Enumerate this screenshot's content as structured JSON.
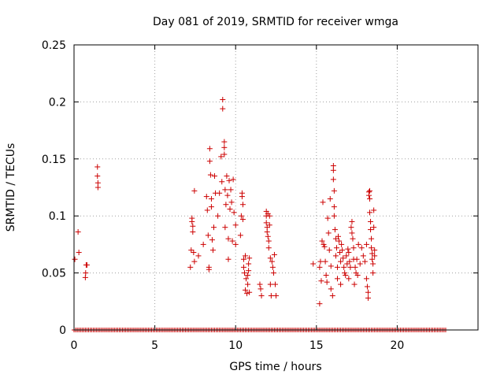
{
  "chart_data": {
    "type": "scatter",
    "title": "Day 081 of 2019, SRMTID for receiver wmga",
    "xlabel": "GPS time / hours",
    "ylabel": "SRMTID / TECUs",
    "xlim": [
      0,
      25
    ],
    "ylim": [
      0,
      0.25
    ],
    "xticks": [
      0,
      5,
      10,
      15,
      20
    ],
    "xtick_labels": [
      "0",
      "5",
      "10",
      "15",
      "20"
    ],
    "yticks": [
      0,
      0.05,
      0.1,
      0.15,
      0.2,
      0.25
    ],
    "ytick_labels": [
      "0",
      "0.05",
      "0.1",
      "0.15",
      "0.2",
      "0.25"
    ],
    "grid": true,
    "marker": "+",
    "series": [
      {
        "name": "SRMTID",
        "color": "#cc0000",
        "baseline_zero_range": [
          0,
          23.0
        ],
        "points": [
          [
            0.05,
            0.062
          ],
          [
            0.25,
            0.086
          ],
          [
            0.3,
            0.068
          ],
          [
            0.7,
            0.046
          ],
          [
            0.72,
            0.05
          ],
          [
            0.75,
            0.057
          ],
          [
            0.8,
            0.057
          ],
          [
            1.45,
            0.143
          ],
          [
            1.45,
            0.135
          ],
          [
            1.48,
            0.129
          ],
          [
            1.48,
            0.125
          ],
          [
            7.2,
            0.055
          ],
          [
            7.25,
            0.07
          ],
          [
            7.3,
            0.098
          ],
          [
            7.3,
            0.095
          ],
          [
            7.35,
            0.091
          ],
          [
            7.35,
            0.086
          ],
          [
            7.4,
            0.068
          ],
          [
            7.45,
            0.06
          ],
          [
            7.45,
            0.122
          ],
          [
            7.7,
            0.065
          ],
          [
            8.0,
            0.075
          ],
          [
            8.2,
            0.117
          ],
          [
            8.25,
            0.105
          ],
          [
            8.3,
            0.083
          ],
          [
            8.35,
            0.055
          ],
          [
            8.35,
            0.053
          ],
          [
            8.4,
            0.159
          ],
          [
            8.4,
            0.148
          ],
          [
            8.45,
            0.136
          ],
          [
            8.5,
            0.115
          ],
          [
            8.5,
            0.108
          ],
          [
            8.55,
            0.079
          ],
          [
            8.6,
            0.07
          ],
          [
            8.65,
            0.09
          ],
          [
            8.7,
            0.135
          ],
          [
            8.75,
            0.12
          ],
          [
            8.9,
            0.1
          ],
          [
            9.0,
            0.12
          ],
          [
            9.1,
            0.152
          ],
          [
            9.15,
            0.13
          ],
          [
            9.2,
            0.202
          ],
          [
            9.2,
            0.194
          ],
          [
            9.3,
            0.165
          ],
          [
            9.3,
            0.16
          ],
          [
            9.3,
            0.154
          ],
          [
            9.35,
            0.123
          ],
          [
            9.35,
            0.09
          ],
          [
            9.4,
            0.11
          ],
          [
            9.45,
            0.135
          ],
          [
            9.5,
            0.118
          ],
          [
            9.55,
            0.08
          ],
          [
            9.55,
            0.062
          ],
          [
            9.6,
            0.131
          ],
          [
            9.65,
            0.106
          ],
          [
            9.7,
            0.123
          ],
          [
            9.75,
            0.112
          ],
          [
            9.8,
            0.078
          ],
          [
            9.85,
            0.132
          ],
          [
            9.9,
            0.103
          ],
          [
            10.0,
            0.092
          ],
          [
            10.0,
            0.075
          ],
          [
            10.3,
            0.083
          ],
          [
            10.35,
            0.1
          ],
          [
            10.4,
            0.12
          ],
          [
            10.4,
            0.117
          ],
          [
            10.45,
            0.11
          ],
          [
            10.45,
            0.097
          ],
          [
            10.5,
            0.062
          ],
          [
            10.5,
            0.055
          ],
          [
            10.55,
            0.05
          ],
          [
            10.6,
            0.065
          ],
          [
            10.6,
            0.035
          ],
          [
            10.65,
            0.045
          ],
          [
            10.7,
            0.032
          ],
          [
            10.75,
            0.048
          ],
          [
            10.75,
            0.04
          ],
          [
            10.8,
            0.058
          ],
          [
            10.8,
            0.052
          ],
          [
            10.85,
            0.063
          ],
          [
            10.85,
            0.033
          ],
          [
            11.5,
            0.04
          ],
          [
            11.55,
            0.036
          ],
          [
            11.6,
            0.03
          ],
          [
            11.9,
            0.104
          ],
          [
            11.9,
            0.1
          ],
          [
            11.9,
            0.094
          ],
          [
            11.95,
            0.09
          ],
          [
            11.95,
            0.086
          ],
          [
            12.0,
            0.102
          ],
          [
            12.0,
            0.082
          ],
          [
            12.05,
            0.078
          ],
          [
            12.05,
            0.072
          ],
          [
            12.1,
            0.1
          ],
          [
            12.1,
            0.092
          ],
          [
            12.15,
            0.063
          ],
          [
            12.15,
            0.04
          ],
          [
            12.2,
            0.03
          ],
          [
            12.25,
            0.06
          ],
          [
            12.3,
            0.055
          ],
          [
            12.35,
            0.05
          ],
          [
            12.4,
            0.066
          ],
          [
            12.45,
            0.04
          ],
          [
            12.5,
            0.03
          ],
          [
            14.8,
            0.058
          ],
          [
            15.2,
            0.055
          ],
          [
            15.2,
            0.023
          ],
          [
            15.25,
            0.06
          ],
          [
            15.3,
            0.043
          ],
          [
            15.35,
            0.078
          ],
          [
            15.4,
            0.112
          ],
          [
            15.45,
            0.075
          ],
          [
            15.5,
            0.073
          ],
          [
            15.55,
            0.06
          ],
          [
            15.6,
            0.048
          ],
          [
            15.65,
            0.042
          ],
          [
            15.7,
            0.098
          ],
          [
            15.75,
            0.085
          ],
          [
            15.8,
            0.07
          ],
          [
            15.85,
            0.115
          ],
          [
            15.9,
            0.056
          ],
          [
            15.9,
            0.036
          ],
          [
            16.0,
            0.03
          ],
          [
            16.05,
            0.144
          ],
          [
            16.05,
            0.14
          ],
          [
            16.05,
            0.132
          ],
          [
            16.1,
            0.122
          ],
          [
            16.1,
            0.108
          ],
          [
            16.1,
            0.1
          ],
          [
            16.15,
            0.088
          ],
          [
            16.2,
            0.08
          ],
          [
            16.2,
            0.065
          ],
          [
            16.25,
            0.072
          ],
          [
            16.3,
            0.055
          ],
          [
            16.3,
            0.045
          ],
          [
            16.35,
            0.082
          ],
          [
            16.4,
            0.078
          ],
          [
            16.45,
            0.068
          ],
          [
            16.5,
            0.06
          ],
          [
            16.5,
            0.04
          ],
          [
            16.55,
            0.075
          ],
          [
            16.6,
            0.07
          ],
          [
            16.65,
            0.063
          ],
          [
            16.7,
            0.055
          ],
          [
            16.75,
            0.05
          ],
          [
            16.8,
            0.048
          ],
          [
            16.85,
            0.065
          ],
          [
            16.9,
            0.058
          ],
          [
            16.95,
            0.071
          ],
          [
            17.0,
            0.045
          ],
          [
            17.0,
            0.068
          ],
          [
            17.05,
            0.06
          ],
          [
            17.1,
            0.055
          ],
          [
            17.15,
            0.09
          ],
          [
            17.2,
            0.085
          ],
          [
            17.2,
            0.095
          ],
          [
            17.25,
            0.08
          ],
          [
            17.3,
            0.072
          ],
          [
            17.3,
            0.062
          ],
          [
            17.35,
            0.04
          ],
          [
            17.4,
            0.055
          ],
          [
            17.45,
            0.05
          ],
          [
            17.5,
            0.062
          ],
          [
            17.55,
            0.048
          ],
          [
            17.6,
            0.075
          ],
          [
            17.7,
            0.058
          ],
          [
            17.8,
            0.072
          ],
          [
            17.9,
            0.065
          ],
          [
            18.0,
            0.06
          ],
          [
            18.1,
            0.075
          ],
          [
            18.1,
            0.045
          ],
          [
            18.15,
            0.038
          ],
          [
            18.2,
            0.033
          ],
          [
            18.2,
            0.028
          ],
          [
            18.25,
            0.121
          ],
          [
            18.25,
            0.118
          ],
          [
            18.3,
            0.122
          ],
          [
            18.3,
            0.115
          ],
          [
            18.3,
            0.103
          ],
          [
            18.35,
            0.095
          ],
          [
            18.35,
            0.088
          ],
          [
            18.4,
            0.08
          ],
          [
            18.4,
            0.072
          ],
          [
            18.45,
            0.067
          ],
          [
            18.45,
            0.062
          ],
          [
            18.5,
            0.058
          ],
          [
            18.5,
            0.05
          ],
          [
            18.55,
            0.105
          ],
          [
            18.55,
            0.09
          ],
          [
            18.6,
            0.07
          ],
          [
            18.6,
            0.065
          ]
        ]
      }
    ]
  }
}
